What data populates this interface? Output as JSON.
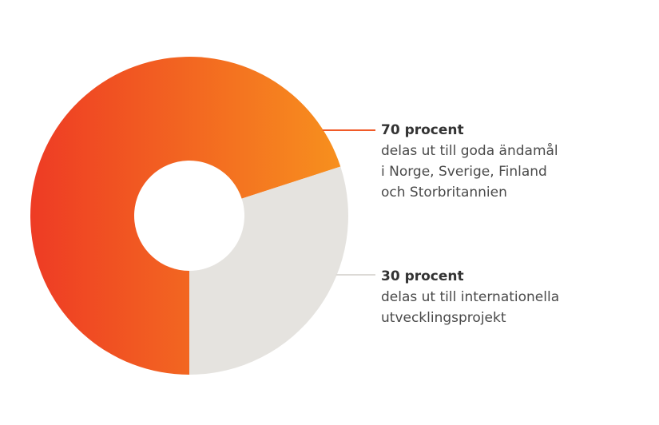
{
  "chart_data": {
    "type": "pie",
    "donut": true,
    "slices": [
      {
        "value": 70,
        "label": "70 procent",
        "description": [
          "delas ut till goda ändamål",
          "i Norge, Sverige, Finland",
          "och Storbritannien"
        ],
        "color_start": "#ee3b24",
        "color_end": "#f7901e",
        "leader_color": "#f05a28"
      },
      {
        "value": 30,
        "label": "30 procent",
        "description": [
          "delas ut till internationella",
          "utvecklingsprojekt"
        ],
        "color": "#e5e3df",
        "leader_color": "#dcdad6"
      }
    ]
  }
}
